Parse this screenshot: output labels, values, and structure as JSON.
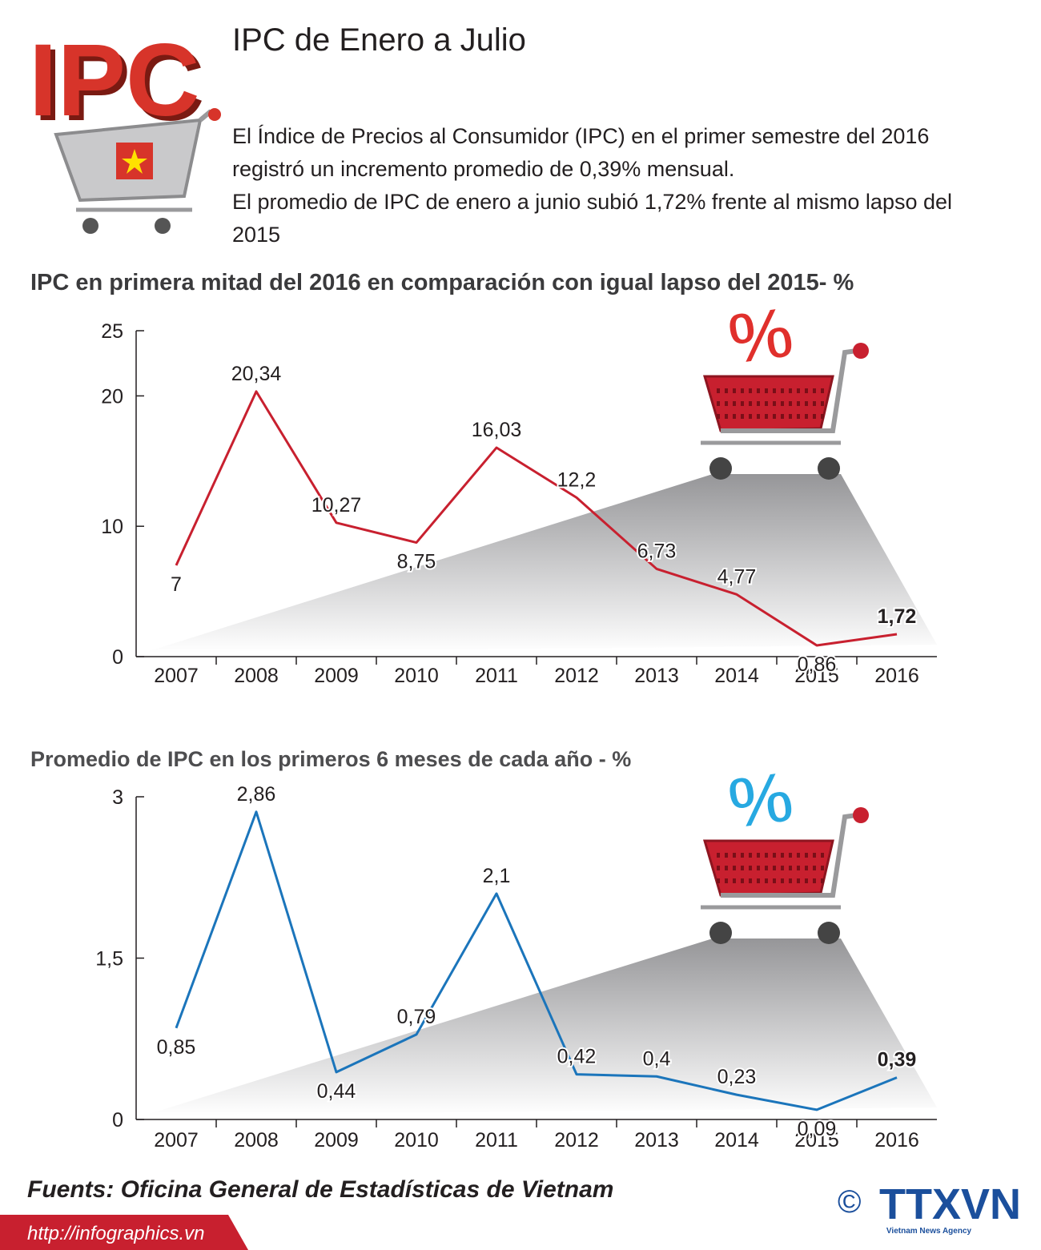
{
  "header": {
    "logo_text": "IPC",
    "title": "IPC de Enero a Julio",
    "description": [
      "El Índice de Precios al Consumidor (IPC) en el primer semestre del 2016 registró un incremento promedio de 0,39% mensual.",
      "El promedio de IPC de enero a junio subió 1,72% frente al mismo lapso del 2015"
    ]
  },
  "chart_data": [
    {
      "type": "line",
      "title": "IPC en primera mitad del 2016 en comparación con igual lapso del 2015- %",
      "badge": "%",
      "categories": [
        "2007",
        "2008",
        "2009",
        "2010",
        "2011",
        "2012",
        "2013",
        "2014",
        "2015",
        "2016"
      ],
      "values": [
        7,
        20.34,
        10.27,
        8.75,
        16.03,
        12.2,
        6.73,
        4.77,
        0.86,
        1.72
      ],
      "value_labels": [
        "7",
        "20,34",
        "10,27",
        "8,75",
        "16,03",
        "12,2",
        "6,73",
        "4,77",
        "0,86",
        "1,72"
      ],
      "color": "#c8202f",
      "ylim": [
        0,
        25
      ],
      "yticks": [
        0,
        10,
        20,
        25
      ]
    },
    {
      "type": "line",
      "title": "Promedio de IPC en los primeros 6 meses de cada año - %",
      "badge": "%",
      "categories": [
        "2007",
        "2008",
        "2009",
        "2010",
        "2011",
        "2012",
        "2013",
        "2014",
        "2015",
        "2016"
      ],
      "values": [
        0.85,
        2.86,
        0.44,
        0.79,
        2.1,
        0.42,
        0.4,
        0.23,
        0.09,
        0.39
      ],
      "value_labels": [
        "0,85",
        "2,86",
        "0,44",
        "0,79",
        "2,1",
        "0,42",
        "0,4",
        "0,23",
        "0,09",
        "0,39"
      ],
      "color": "#1b75bb",
      "ylim": [
        0,
        3
      ],
      "yticks": [
        0,
        {
          "value": 1.5,
          "label": "1,5"
        },
        3
      ]
    }
  ],
  "footer": {
    "source": "Fuents: Oficina General de Estadísticas de Vietnam",
    "url": "http://infographics.vn",
    "copyright": "©",
    "agency": "TTXVN",
    "agency_sub": "Vietnam News Agency"
  }
}
